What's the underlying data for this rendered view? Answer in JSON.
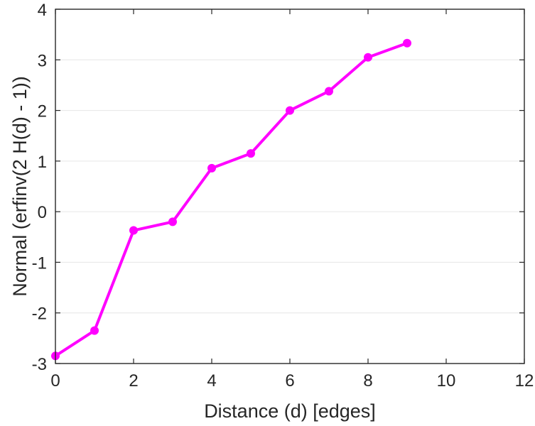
{
  "chart_data": {
    "type": "line",
    "title": "",
    "xlabel": "Distance (d) [edges]",
    "ylabel": "Normal (erfinv(2 H(d) - 1))",
    "xlim": [
      0,
      12
    ],
    "ylim": [
      -3,
      4
    ],
    "xticks": [
      "0",
      "2",
      "4",
      "6",
      "8",
      "10",
      "12"
    ],
    "yticks": [
      "-3",
      "-2",
      "-1",
      "0",
      "1",
      "2",
      "3",
      "4"
    ],
    "grid": "horizontal",
    "legend": "none",
    "series": [
      {
        "color": "#ff00ff",
        "marker": "circle",
        "x": [
          0,
          1,
          2,
          3,
          4,
          5,
          6,
          7,
          8,
          9
        ],
        "y": [
          -2.85,
          -2.35,
          -0.37,
          -0.2,
          0.86,
          1.15,
          2.0,
          2.38,
          3.05,
          3.33
        ]
      }
    ]
  }
}
